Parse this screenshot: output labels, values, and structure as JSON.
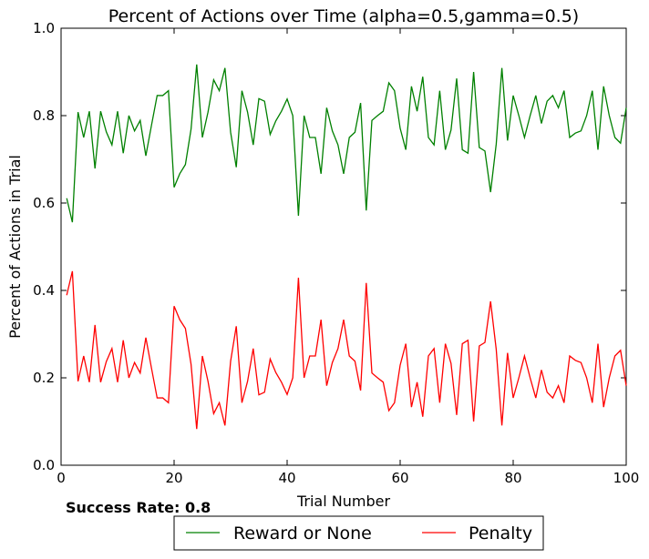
{
  "footer": {
    "success_rate_text": "Success Rate: 0.8"
  },
  "chart_data": {
    "type": "line",
    "title": "Percent of Actions over Time (alpha=0.5,gamma=0.5)",
    "xlabel": "Trial Number",
    "ylabel": "Percent of Actions in Trial",
    "xlim": [
      0,
      100
    ],
    "ylim": [
      0.0,
      1.0
    ],
    "xticks": [
      0,
      20,
      40,
      60,
      80,
      100
    ],
    "yticks": [
      0.0,
      0.2,
      0.4,
      0.6,
      0.8,
      1.0
    ],
    "ytick_labels": [
      "0.0",
      "0.2",
      "0.4",
      "0.6",
      "0.8",
      "1.0"
    ],
    "grid": false,
    "legend": "bottom, outside, two columns",
    "x": [
      1,
      2,
      3,
      4,
      5,
      6,
      7,
      8,
      9,
      10,
      11,
      12,
      13,
      14,
      15,
      16,
      17,
      18,
      19,
      20,
      21,
      22,
      23,
      24,
      25,
      26,
      27,
      28,
      29,
      30,
      31,
      32,
      33,
      34,
      35,
      36,
      37,
      38,
      39,
      40,
      41,
      42,
      43,
      44,
      45,
      46,
      47,
      48,
      49,
      50,
      51,
      52,
      53,
      54,
      55,
      56,
      57,
      58,
      59,
      60,
      61,
      62,
      63,
      64,
      65,
      66,
      67,
      68,
      69,
      70,
      71,
      72,
      73,
      74,
      75,
      76,
      77,
      78,
      79,
      80,
      81,
      82,
      83,
      84,
      85,
      86,
      87,
      88,
      89,
      90,
      91,
      92,
      93,
      94,
      95,
      96,
      97,
      98,
      99,
      100
    ],
    "series": [
      {
        "name": "Reward or None",
        "color": "#008000",
        "values": [
          0.611,
          0.556,
          0.808,
          0.75,
          0.81,
          0.679,
          0.81,
          0.763,
          0.733,
          0.81,
          0.714,
          0.8,
          0.765,
          0.789,
          0.708,
          0.778,
          0.846,
          0.846,
          0.857,
          0.636,
          0.667,
          0.688,
          0.769,
          0.917,
          0.75,
          0.808,
          0.882,
          0.857,
          0.909,
          0.762,
          0.682,
          0.857,
          0.808,
          0.733,
          0.839,
          0.833,
          0.757,
          0.788,
          0.81,
          0.838,
          0.8,
          0.571,
          0.8,
          0.75,
          0.75,
          0.667,
          0.818,
          0.765,
          0.733,
          0.667,
          0.75,
          0.762,
          0.829,
          0.583,
          0.789,
          0.8,
          0.81,
          0.875,
          0.857,
          0.771,
          0.722,
          0.867,
          0.81,
          0.889,
          0.75,
          0.733,
          0.857,
          0.722,
          0.767,
          0.885,
          0.722,
          0.714,
          0.9,
          0.727,
          0.719,
          0.625,
          0.735,
          0.909,
          0.743,
          0.846,
          0.8,
          0.75,
          0.8,
          0.846,
          0.782,
          0.833,
          0.846,
          0.818,
          0.857,
          0.75,
          0.76,
          0.765,
          0.8,
          0.857,
          0.722,
          0.867,
          0.8,
          0.75,
          0.737,
          0.818
        ]
      },
      {
        "name": "Penalty",
        "color": "#ff0000",
        "values": [
          0.389,
          0.444,
          0.192,
          0.25,
          0.19,
          0.321,
          0.19,
          0.237,
          0.267,
          0.19,
          0.286,
          0.2,
          0.235,
          0.211,
          0.292,
          0.222,
          0.154,
          0.154,
          0.143,
          0.364,
          0.333,
          0.313,
          0.231,
          0.083,
          0.25,
          0.192,
          0.118,
          0.143,
          0.091,
          0.238,
          0.318,
          0.143,
          0.192,
          0.267,
          0.161,
          0.167,
          0.243,
          0.212,
          0.19,
          0.162,
          0.2,
          0.429,
          0.2,
          0.25,
          0.25,
          0.333,
          0.182,
          0.235,
          0.267,
          0.333,
          0.25,
          0.238,
          0.171,
          0.417,
          0.211,
          0.2,
          0.19,
          0.125,
          0.143,
          0.229,
          0.278,
          0.133,
          0.19,
          0.111,
          0.25,
          0.267,
          0.143,
          0.278,
          0.233,
          0.115,
          0.278,
          0.286,
          0.1,
          0.273,
          0.281,
          0.375,
          0.265,
          0.091,
          0.257,
          0.154,
          0.2,
          0.25,
          0.2,
          0.154,
          0.218,
          0.167,
          0.154,
          0.182,
          0.143,
          0.25,
          0.24,
          0.235,
          0.2,
          0.143,
          0.278,
          0.133,
          0.2,
          0.25,
          0.263,
          0.182
        ]
      }
    ]
  }
}
